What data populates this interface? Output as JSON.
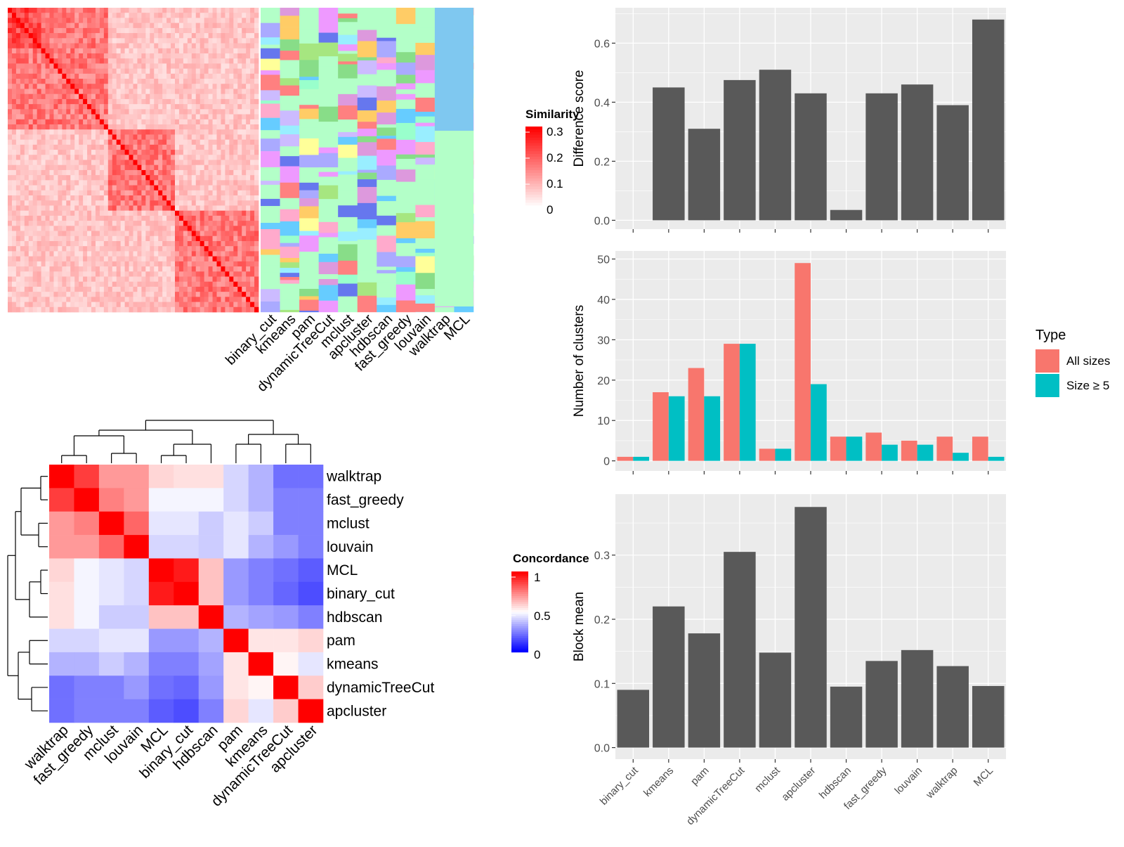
{
  "methods_heatmap_order": [
    "binary_cut",
    "kmeans",
    "pam",
    "dynamicTreeCut",
    "mclust",
    "apcluster",
    "hdbscan",
    "fast_greedy",
    "louvain",
    "walktrap",
    "MCL"
  ],
  "similarity_legend": {
    "title": "Similarity",
    "ticks": [
      "0",
      "0.1",
      "0.2",
      "0.3"
    ],
    "low_color": "#ffffff",
    "high_color": "#ff0000"
  },
  "concordance_legend": {
    "title": "Concordance",
    "ticks": [
      "0",
      "0.5",
      "1"
    ],
    "low_color": "#0000ff",
    "mid_color": "#ffffff",
    "high_color": "#ff0000"
  },
  "concordance_order": [
    "walktrap",
    "fast_greedy",
    "mclust",
    "louvain",
    "MCL",
    "binary_cut",
    "hdbscan",
    "pam",
    "kmeans",
    "dynamicTreeCut",
    "apcluster"
  ],
  "concordance_matrix": [
    [
      1.0,
      0.88,
      0.7,
      0.7,
      0.58,
      0.56,
      0.56,
      0.42,
      0.35,
      0.22,
      0.22
    ],
    [
      0.88,
      1.0,
      0.75,
      0.7,
      0.48,
      0.48,
      0.48,
      0.42,
      0.35,
      0.25,
      0.25
    ],
    [
      0.7,
      0.75,
      1.0,
      0.8,
      0.45,
      0.45,
      0.4,
      0.45,
      0.4,
      0.25,
      0.25
    ],
    [
      0.7,
      0.7,
      0.8,
      1.0,
      0.42,
      0.42,
      0.4,
      0.45,
      0.35,
      0.3,
      0.25
    ],
    [
      0.58,
      0.48,
      0.45,
      0.42,
      1.0,
      0.95,
      0.62,
      0.3,
      0.25,
      0.22,
      0.18
    ],
    [
      0.56,
      0.48,
      0.45,
      0.42,
      0.95,
      1.0,
      0.62,
      0.3,
      0.25,
      0.2,
      0.15
    ],
    [
      0.56,
      0.48,
      0.4,
      0.4,
      0.62,
      0.62,
      1.0,
      0.35,
      0.32,
      0.3,
      0.25
    ],
    [
      0.42,
      0.42,
      0.45,
      0.45,
      0.3,
      0.3,
      0.35,
      1.0,
      0.55,
      0.55,
      0.58
    ],
    [
      0.35,
      0.35,
      0.4,
      0.35,
      0.25,
      0.25,
      0.32,
      0.55,
      1.0,
      0.52,
      0.45
    ],
    [
      0.22,
      0.25,
      0.25,
      0.3,
      0.22,
      0.2,
      0.3,
      0.55,
      0.52,
      1.0,
      0.6
    ],
    [
      0.22,
      0.25,
      0.25,
      0.25,
      0.18,
      0.15,
      0.25,
      0.58,
      0.45,
      0.6,
      1.0
    ]
  ],
  "chart_data": [
    {
      "type": "bar",
      "categories": [
        "binary_cut",
        "kmeans",
        "pam",
        "dynamicTreeCut",
        "mclust",
        "apcluster",
        "hdbscan",
        "fast_greedy",
        "louvain",
        "walktrap",
        "MCL"
      ],
      "values": [
        0.0,
        0.45,
        0.31,
        0.475,
        0.51,
        0.43,
        0.035,
        0.43,
        0.46,
        0.39,
        0.68
      ],
      "ylabel": "Difference score",
      "ylim": [
        -0.03,
        0.72
      ],
      "yticks": [
        "0.0",
        "0.2",
        "0.4",
        "0.6"
      ],
      "color": "#595959"
    },
    {
      "type": "bar",
      "categories": [
        "binary_cut",
        "kmeans",
        "pam",
        "dynamicTreeCut",
        "mclust",
        "apcluster",
        "hdbscan",
        "fast_greedy",
        "louvain",
        "walktrap",
        "MCL"
      ],
      "series": [
        {
          "name": "All sizes",
          "values": [
            1,
            17,
            23,
            29,
            3,
            49,
            6,
            7,
            5,
            6,
            6
          ],
          "color": "#f8766d"
        },
        {
          "name": "Size ≥ 5",
          "values": [
            1,
            16,
            16,
            29,
            3,
            19,
            6,
            4,
            4,
            2,
            1
          ],
          "color": "#00bfc4"
        }
      ],
      "ylabel": "Number of clusters",
      "ylim": [
        -2.5,
        52
      ],
      "yticks": [
        "0",
        "10",
        "20",
        "30",
        "40",
        "50"
      ],
      "legend": {
        "title": "Type",
        "placement": "right"
      }
    },
    {
      "type": "bar",
      "categories": [
        "binary_cut",
        "kmeans",
        "pam",
        "dynamicTreeCut",
        "mclust",
        "apcluster",
        "hdbscan",
        "fast_greedy",
        "louvain",
        "walktrap",
        "MCL"
      ],
      "values": [
        0.09,
        0.22,
        0.178,
        0.305,
        0.148,
        0.375,
        0.095,
        0.135,
        0.152,
        0.127,
        0.096
      ],
      "ylabel": "Block mean",
      "ylim": [
        -0.018,
        0.395
      ],
      "yticks": [
        "0.0",
        "0.1",
        "0.2",
        "0.3"
      ],
      "color": "#595959"
    }
  ]
}
